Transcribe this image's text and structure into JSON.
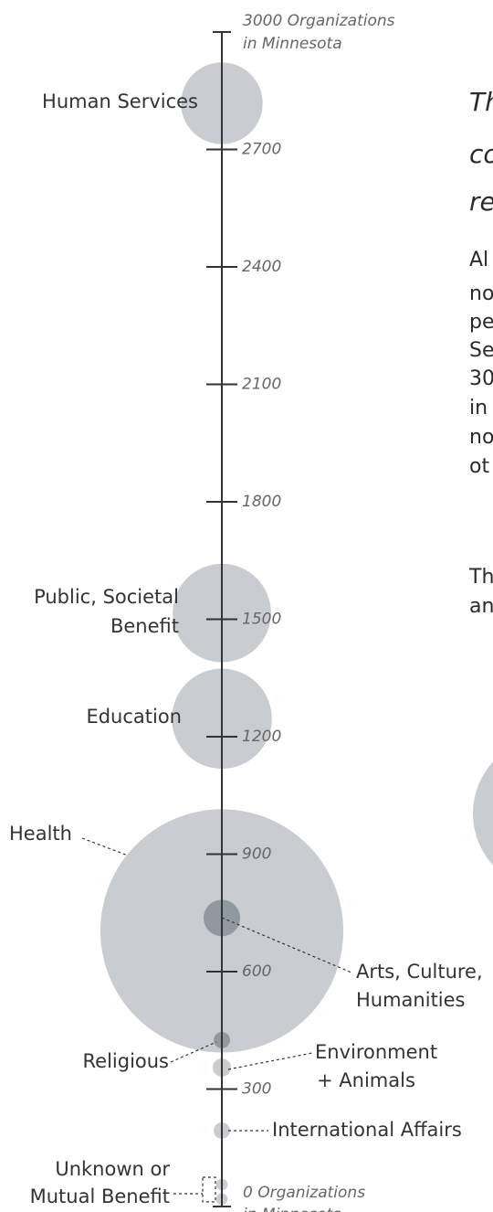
{
  "chart_data": {
    "type": "bubble",
    "categories": [
      "Human Services",
      "Public, Societal Benefit",
      "Education",
      "Health",
      "Arts, Culture, Humanities",
      "Religious",
      "Environment + Animals",
      "International Affairs",
      "Unknown or Mutual Benefit",
      null
    ],
    "label_lines": [
      [
        "Human Services"
      ],
      [
        "Public, Societal",
        "Benefit"
      ],
      [
        "Education"
      ],
      [
        "Health"
      ],
      [
        "Arts, Culture,",
        "Humanities"
      ],
      [
        "Religious"
      ],
      [
        "Environment",
        "+ Animals"
      ],
      [
        "International Affairs"
      ],
      [
        "Unknown or",
        "Mutual Benefit"
      ],
      []
    ],
    "values": [
      2818,
      1516,
      1246,
      704,
      737,
      425,
      355,
      194,
      56,
      19
    ],
    "sizes": [
      20,
      29,
      30,
      177,
      4,
      0.8,
      1,
      0.8,
      0.4,
      0.4
    ],
    "colors": [
      "#c9ccd0",
      "#c9ccd0",
      "#c9ccd0",
      "#c9ccd0",
      "#8f999f",
      "#8f999f",
      "#c9ccd0",
      "#c9ccd0",
      "#c9ccd0",
      "#c9ccd0"
    ],
    "ylim": [
      0,
      3000
    ],
    "yticks": [
      {
        "value": 3000,
        "label": "3000 Organizations"
      },
      2700,
      2400,
      2100,
      1800,
      1500,
      1200,
      900,
      600,
      300,
      {
        "value": 0,
        "label": "0 Organizations"
      }
    ],
    "axis_note": "in Minnesota"
  },
  "side_text": {
    "heading": [
      "Th",
      "co",
      "re"
    ],
    "paragraph1": [
      "Al",
      "no",
      "pe",
      "Se",
      "30",
      "in",
      "no",
      "ot"
    ],
    "paragraph2": [
      "Th",
      "an"
    ]
  }
}
